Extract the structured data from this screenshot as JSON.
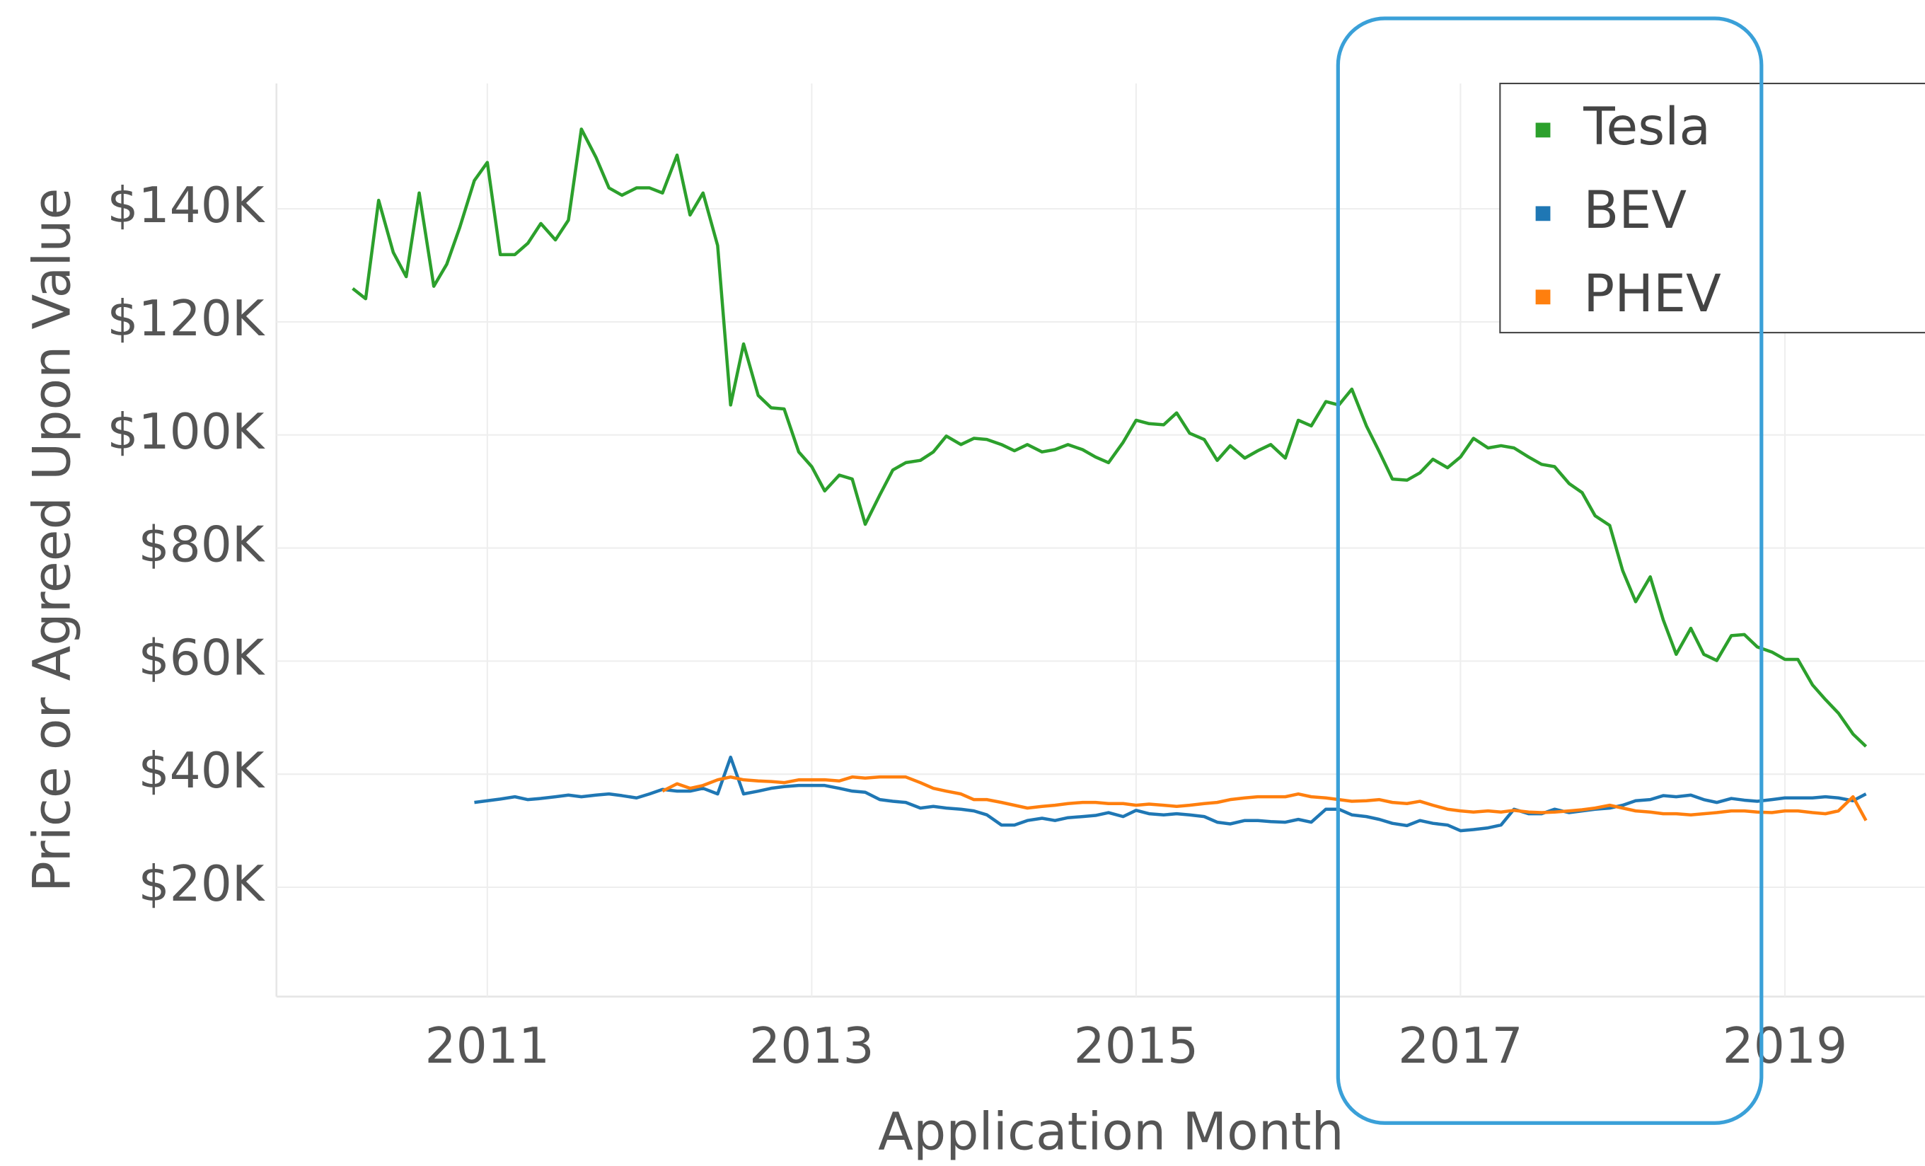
{
  "chart_data": {
    "type": "line",
    "x_label": "Application Month",
    "y_label": "Price or Agreed Upon Value",
    "x": [
      2010.17,
      2010.25,
      2010.33,
      2010.42,
      2010.5,
      2010.58,
      2010.67,
      2010.75,
      2010.83,
      2010.92,
      2011,
      2011.08,
      2011.17,
      2011.25,
      2011.33,
      2011.42,
      2011.5,
      2011.58,
      2011.67,
      2011.75,
      2011.83,
      2011.92,
      2012,
      2012.08,
      2012.17,
      2012.25,
      2012.33,
      2012.42,
      2012.5,
      2012.58,
      2012.67,
      2012.75,
      2012.83,
      2012.92,
      2013,
      2013.08,
      2013.17,
      2013.25,
      2013.33,
      2013.42,
      2013.5,
      2013.58,
      2013.67,
      2013.75,
      2013.83,
      2013.92,
      2014,
      2014.08,
      2014.17,
      2014.25,
      2014.33,
      2014.42,
      2014.5,
      2014.58,
      2014.67,
      2014.75,
      2014.83,
      2014.92,
      2015,
      2015.08,
      2015.17,
      2015.25,
      2015.33,
      2015.42,
      2015.5,
      2015.58,
      2015.67,
      2015.75,
      2015.83,
      2015.92,
      2016,
      2016.08,
      2016.17,
      2016.25,
      2016.33,
      2016.42,
      2016.5,
      2016.58,
      2016.67,
      2016.75,
      2016.83,
      2016.92,
      2017,
      2017.08,
      2017.17,
      2017.25,
      2017.33,
      2017.42,
      2017.5,
      2017.58,
      2017.67,
      2017.75,
      2017.83,
      2017.92,
      2018,
      2018.08,
      2018.17,
      2018.25,
      2018.33,
      2018.42,
      2018.5,
      2018.58,
      2018.67,
      2018.75,
      2018.83,
      2018.92,
      2019,
      2019.08,
      2019.17,
      2019.25,
      2019.33,
      2019.42,
      2019.5
    ],
    "series": [
      {
        "name": "Tesla",
        "color": "#2ca02c",
        "values": [
          125900,
          124100,
          141500,
          132300,
          128000,
          142800,
          126300,
          130200,
          136700,
          145000,
          148200,
          131900,
          131900,
          133900,
          137400,
          134500,
          138000,
          154100,
          149100,
          143700,
          142400,
          143700,
          143700,
          142800,
          149500,
          138900,
          142800,
          133500,
          105300,
          116100,
          107000,
          104800,
          104600,
          97000,
          94400,
          90100,
          92900,
          92200,
          84200,
          89400,
          93800,
          95100,
          95500,
          97000,
          99800,
          98300,
          99400,
          99200,
          98300,
          97200,
          98300,
          97000,
          97400,
          98300,
          97400,
          96100,
          95100,
          98700,
          102600,
          102000,
          101800,
          103900,
          100300,
          99200,
          95500,
          98100,
          95900,
          97200,
          98300,
          95900,
          102600,
          101600,
          105900,
          105300,
          108100,
          101600,
          97000,
          92200,
          92000,
          93300,
          95700,
          94200,
          96100,
          99400,
          97700,
          98100,
          97700,
          96100,
          94800,
          94400,
          91400,
          89800,
          85700,
          84000,
          76000,
          70500,
          74900,
          67300,
          61200,
          65800,
          61200,
          60100,
          64500,
          64700,
          62500,
          61600,
          60300,
          60300,
          55800,
          53200,
          50800,
          47100,
          44900
        ]
      },
      {
        "name": "BEV",
        "color": "#1f77b4",
        "values": [
          null,
          null,
          null,
          null,
          null,
          null,
          null,
          null,
          null,
          35000,
          35300,
          35600,
          36000,
          35500,
          35700,
          36000,
          36300,
          36000,
          36300,
          36500,
          36200,
          35800,
          36500,
          37300,
          37000,
          37000,
          37500,
          36500,
          43000,
          36500,
          37000,
          37500,
          37800,
          38000,
          38000,
          38000,
          37500,
          37000,
          36800,
          35500,
          35200,
          35000,
          34000,
          34300,
          34000,
          33800,
          33500,
          32800,
          31000,
          31000,
          31800,
          32200,
          31800,
          32300,
          32500,
          32700,
          33200,
          32500,
          33600,
          33000,
          32800,
          33000,
          32800,
          32500,
          31500,
          31200,
          31800,
          31800,
          31600,
          31500,
          32000,
          31500,
          33800,
          33800,
          32800,
          32500,
          32000,
          31300,
          30900,
          31800,
          31300,
          31000,
          30000,
          30200,
          30500,
          31000,
          33800,
          33000,
          33000,
          33800,
          33200,
          33500,
          33800,
          34000,
          34500,
          35300,
          35500,
          36200,
          36000,
          36300,
          35500,
          35000,
          35700,
          35400,
          35200,
          35500,
          35800,
          35800,
          35800,
          36000,
          35800,
          35300,
          36500
        ]
      },
      {
        "name": "PHEV",
        "color": "#ff7f0e",
        "values": [
          null,
          null,
          null,
          null,
          null,
          null,
          null,
          null,
          null,
          null,
          null,
          null,
          null,
          null,
          null,
          null,
          null,
          null,
          null,
          null,
          null,
          null,
          null,
          37000,
          38300,
          37500,
          38000,
          39000,
          39500,
          39000,
          38800,
          38700,
          38500,
          39000,
          39000,
          39000,
          38800,
          39500,
          39300,
          39500,
          39500,
          39500,
          38500,
          37500,
          37000,
          36500,
          35500,
          35500,
          35000,
          34500,
          34000,
          34300,
          34500,
          34800,
          35000,
          35000,
          34800,
          34800,
          34500,
          34700,
          34500,
          34300,
          34500,
          34800,
          35000,
          35500,
          35800,
          36000,
          36000,
          36000,
          36500,
          36000,
          35800,
          35500,
          35200,
          35300,
          35500,
          35000,
          34800,
          35200,
          34500,
          33800,
          33500,
          33300,
          33500,
          33300,
          33600,
          33300,
          33200,
          33300,
          33500,
          33700,
          34000,
          34500,
          34000,
          33500,
          33300,
          33000,
          33000,
          32800,
          33000,
          33200,
          33500,
          33500,
          33300,
          33200,
          33500,
          33500,
          33200,
          33000,
          33500,
          36000,
          31800
        ]
      }
    ],
    "xlim": [
      2009.7,
      2019.65
    ],
    "xticks": [
      2011,
      2013,
      2015,
      2017,
      2019
    ],
    "ylim": [
      0,
      160000
    ],
    "yticks": [
      {
        "value": 20000,
        "label": "$20K"
      },
      {
        "value": 40000,
        "label": "$40K"
      },
      {
        "value": 60000,
        "label": "$60K"
      },
      {
        "value": 80000,
        "label": "$80K"
      },
      {
        "value": 100000,
        "label": "$100K"
      },
      {
        "value": 120000,
        "label": "$120K"
      },
      {
        "value": 140000,
        "label": "$140K"
      }
    ],
    "grid": true,
    "legend": "upper right"
  }
}
